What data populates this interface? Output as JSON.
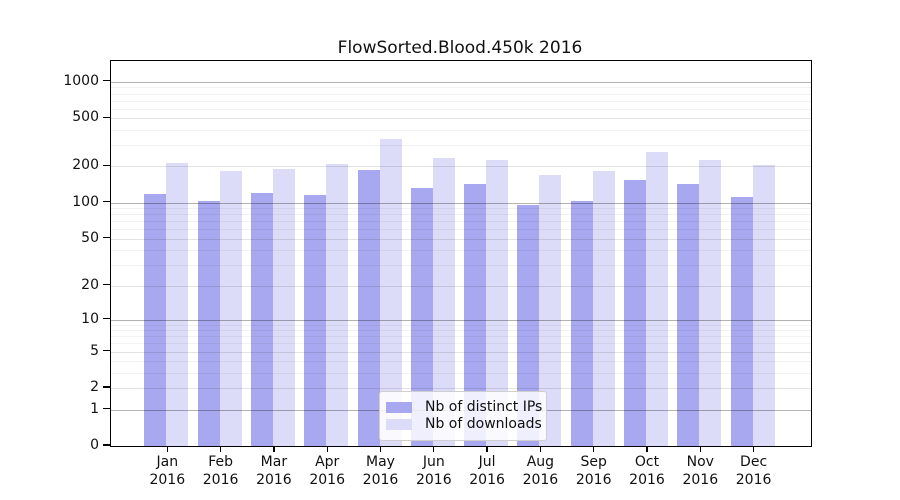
{
  "chart_data": {
    "type": "bar",
    "title": "FlowSorted.Blood.450k 2016",
    "xlabel": "",
    "ylabel": "",
    "yscale": "log1p",
    "grid": "horizontal, drawn over bars",
    "legend_position": "inside lower-center",
    "y_tick_labels": [
      0,
      1,
      2,
      5,
      10,
      20,
      50,
      100,
      200,
      500,
      1000
    ],
    "y_minor_gridlines": [
      3,
      4,
      6,
      7,
      8,
      9,
      30,
      40,
      60,
      70,
      80,
      90,
      300,
      400,
      600,
      700,
      800,
      900
    ],
    "ylim": [
      0,
      1300
    ],
    "categories": [
      {
        "month": "Jan",
        "year": "2016"
      },
      {
        "month": "Feb",
        "year": "2016"
      },
      {
        "month": "Mar",
        "year": "2016"
      },
      {
        "month": "Apr",
        "year": "2016"
      },
      {
        "month": "May",
        "year": "2016"
      },
      {
        "month": "Jun",
        "year": "2016"
      },
      {
        "month": "Jul",
        "year": "2016"
      },
      {
        "month": "Aug",
        "year": "2016"
      },
      {
        "month": "Sep",
        "year": "2016"
      },
      {
        "month": "Oct",
        "year": "2016"
      },
      {
        "month": "Nov",
        "year": "2016"
      },
      {
        "month": "Dec",
        "year": "2016"
      }
    ],
    "series": [
      {
        "name": "Nb of distinct IPs",
        "color": "#a8a8f0",
        "values": [
          118,
          103,
          121,
          116,
          186,
          133,
          142,
          95,
          103,
          154,
          144,
          111
        ]
      },
      {
        "name": "Nb of downloads",
        "color": "#dcdcf8",
        "values": [
          212,
          185,
          190,
          208,
          338,
          236,
          226,
          169,
          183,
          263,
          226,
          204
        ]
      }
    ]
  }
}
